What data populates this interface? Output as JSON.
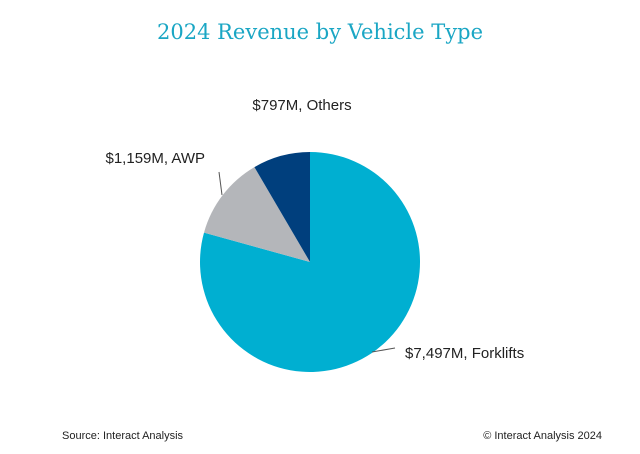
{
  "chart_data": {
    "type": "pie",
    "title": "2024 Revenue by Vehicle Type",
    "slices": [
      {
        "name": "Forklifts",
        "value": 7497,
        "label": "$7,497M, Forklifts",
        "color": "#00afd1"
      },
      {
        "name": "AWP",
        "value": 1159,
        "label": "$1,159M, AWP",
        "color": "#b4b6ba"
      },
      {
        "name": "Others",
        "value": 797,
        "label": "$797M, Others",
        "color": "#003f7d"
      }
    ],
    "unit": "$M"
  },
  "footer": {
    "source": "Source: Interact Analysis",
    "copyright": "© Interact Analysis 2024"
  }
}
